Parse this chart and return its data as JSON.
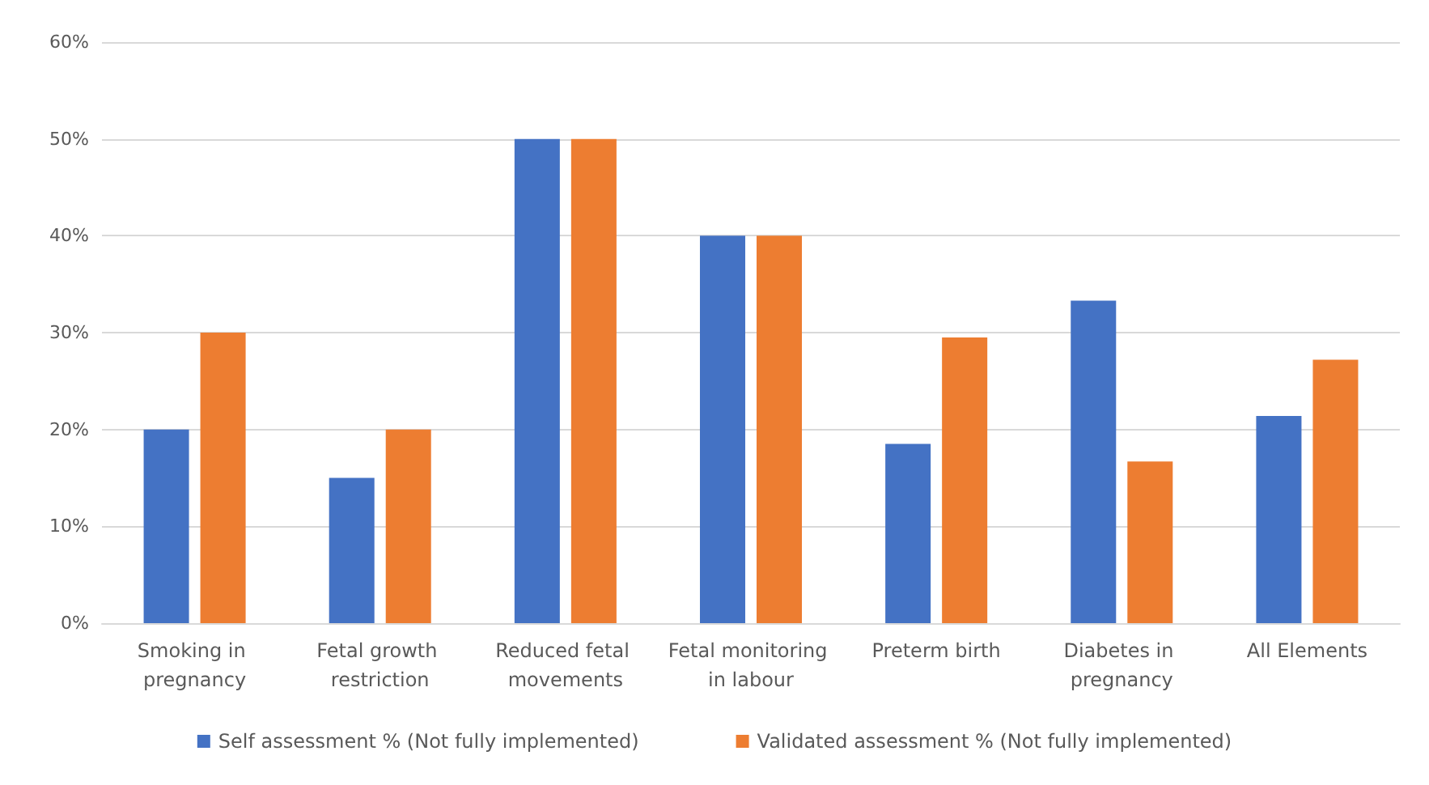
{
  "chart_data": {
    "type": "bar",
    "categories": [
      "Smoking in pregnancy",
      "Fetal growth restriction",
      "Reduced fetal movements",
      "Fetal monitoring in labour",
      "Preterm birth",
      "Diabetes in pregnancy",
      "All Elements"
    ],
    "series": [
      {
        "name": "Self assessment % (Not fully implemented)",
        "color": "#4472c4",
        "values": [
          20,
          15,
          50,
          40,
          18.5,
          33.3,
          21.4
        ]
      },
      {
        "name": "Validated assessment % (Not fully implemented)",
        "color": "#ed7d31",
        "values": [
          30,
          20,
          50,
          40,
          29.5,
          16.7,
          27.2
        ]
      }
    ],
    "ylim": [
      0,
      60
    ],
    "yticks": [
      {
        "value": 0,
        "label": "0%"
      },
      {
        "value": 10,
        "label": "10%"
      },
      {
        "value": 20,
        "label": "20%"
      },
      {
        "value": 30,
        "label": "30%"
      },
      {
        "value": 40,
        "label": "40%"
      },
      {
        "value": 50,
        "label": "50%"
      },
      {
        "value": 60,
        "label": "60%"
      }
    ],
    "grid": "y",
    "legend": "bottom"
  }
}
